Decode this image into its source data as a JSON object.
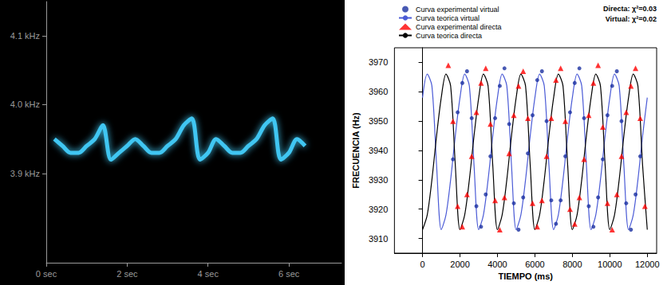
{
  "chart_data": [
    {
      "type": "line",
      "x": [
        0.2,
        0.4,
        0.6,
        0.8,
        1.0,
        1.2,
        1.4,
        1.6,
        1.8,
        2.0,
        2.2,
        2.4,
        2.6,
        2.8,
        3.0,
        3.2,
        3.4,
        3.6,
        3.8,
        4.0,
        4.2,
        4.4,
        4.6,
        4.8,
        5.0,
        5.2,
        5.4,
        5.6,
        5.8,
        6.0,
        6.2,
        6.4
      ],
      "values": [
        3.95,
        3.94,
        3.93,
        3.93,
        3.94,
        3.95,
        3.97,
        3.92,
        3.93,
        3.94,
        3.95,
        3.94,
        3.93,
        3.93,
        3.94,
        3.95,
        3.97,
        3.98,
        3.92,
        3.93,
        3.95,
        3.94,
        3.93,
        3.93,
        3.94,
        3.95,
        3.97,
        3.98,
        3.92,
        3.93,
        3.95,
        3.94
      ],
      "color": "#3fc6f2",
      "marker": "none",
      "line_style": "solid",
      "xlim": [
        0,
        7.3
      ],
      "xticks": [
        {
          "value": 0,
          "label": "0 sec"
        },
        {
          "value": 2,
          "label": "2 sec"
        },
        {
          "value": 4,
          "label": "4 sec"
        },
        {
          "value": 6,
          "label": "6 sec"
        }
      ],
      "ylim": [
        3.77,
        4.15
      ],
      "yticks": [
        {
          "value": 3.9,
          "label": "3.9 kHz"
        },
        {
          "value": 4.0,
          "label": "4.0 kHz"
        },
        {
          "value": 4.1,
          "label": "4.1 kHz"
        }
      ],
      "grid": false
    },
    {
      "type": "line",
      "x_label": "TIEMPO (ms)",
      "y_label": "FRECUENCIA (Hz)",
      "annotations": [
        "Directa: χ²=0.03",
        "Virtual: χ²=0.02"
      ],
      "series": [
        {
          "name": "Curva experimental virtual",
          "type": "scatter",
          "marker": "circle",
          "color": "#1a2fa0",
          "x": [
            1625,
            1875,
            2125,
            2375,
            2625,
            2875,
            3125,
            3375,
            3625,
            3875,
            4125,
            4375,
            4625,
            4875,
            5125,
            5375,
            5625,
            5875,
            6125,
            6375,
            6625,
            6875,
            7125,
            7375,
            7625,
            7875,
            8125,
            8375,
            8625,
            8875,
            9125,
            9375,
            9625,
            9875,
            10125,
            10375,
            10625,
            10875,
            11125,
            11375,
            11625
          ],
          "values": [
            3937,
            3953,
            3963,
            3967,
            3951,
            3921,
            3914,
            3925,
            3938,
            3951,
            3962,
            3968,
            3949,
            3922,
            3913,
            3924,
            3939,
            3952,
            3964,
            3967,
            3950,
            3923,
            3915,
            3923,
            3938,
            3953,
            3963,
            3968,
            3951,
            3921,
            3914,
            3924,
            3937,
            3952,
            3962,
            3967,
            3950,
            3922,
            3913,
            3925,
            3938
          ]
        },
        {
          "name": "Curva teorica virtual",
          "type": "line",
          "marker": "none",
          "line_style": "solid",
          "color": "#4b5bd6",
          "x": [
            0,
            250,
            500,
            750,
            1000,
            1250,
            1500,
            1750,
            2000,
            2250,
            2500,
            2750,
            3000,
            3250,
            3500,
            3750,
            4000,
            4250,
            4500,
            4750,
            5000,
            5250,
            5500,
            5750,
            6000,
            6250,
            6500,
            6750,
            7000,
            7250,
            7500,
            7750,
            8000,
            8250,
            8500,
            8750,
            9000,
            9250,
            9500,
            9750,
            10000,
            10250,
            10500,
            10750,
            11000,
            11250,
            11500,
            11750,
            12000
          ],
          "values": [
            3958,
            3966,
            3962,
            3935,
            3913,
            3918,
            3930,
            3945,
            3958,
            3966,
            3962,
            3935,
            3913,
            3918,
            3930,
            3945,
            3958,
            3966,
            3962,
            3935,
            3913,
            3918,
            3930,
            3945,
            3958,
            3966,
            3962,
            3935,
            3913,
            3918,
            3930,
            3945,
            3958,
            3966,
            3962,
            3935,
            3913,
            3918,
            3930,
            3945,
            3958,
            3966,
            3962,
            3935,
            3913,
            3918,
            3930,
            3945,
            3958
          ]
        },
        {
          "name": "Curva experimental directa",
          "type": "scatter",
          "marker": "triangle",
          "color": "#ff0000",
          "x": [
            1375,
            1625,
            1875,
            2125,
            2375,
            2625,
            2875,
            3125,
            3375,
            3625,
            3875,
            4125,
            4375,
            4625,
            4875,
            5125,
            5375,
            5625,
            5875,
            6125,
            6375,
            6625,
            6875,
            7125,
            7375,
            7625,
            7875,
            8125,
            8375,
            8625,
            8875,
            9125,
            9375,
            9625,
            9875,
            10125,
            10375,
            10625,
            10875,
            11125,
            11375,
            11625,
            11875
          ],
          "values": [
            3969,
            3950,
            3921,
            3914,
            3925,
            3938,
            3953,
            3963,
            3968,
            3949,
            3923,
            3913,
            3924,
            3939,
            3952,
            3962,
            3967,
            3951,
            3922,
            3914,
            3923,
            3938,
            3951,
            3964,
            3968,
            3950,
            3920,
            3915,
            3924,
            3937,
            3952,
            3963,
            3969,
            3948,
            3922,
            3913,
            3925,
            3938,
            3953,
            3962,
            3968,
            3951,
            3921
          ]
        },
        {
          "name": "Curva teorica directa",
          "type": "line",
          "marker": "none",
          "line_style": "solid",
          "color": "#000000",
          "x": [
            0,
            250,
            500,
            750,
            1000,
            1250,
            1500,
            1750,
            2000,
            2250,
            2500,
            2750,
            3000,
            3250,
            3500,
            3750,
            4000,
            4250,
            4500,
            4750,
            5000,
            5250,
            5500,
            5750,
            6000,
            6250,
            6500,
            6750,
            7000,
            7250,
            7500,
            7750,
            8000,
            8250,
            8500,
            8750,
            9000,
            9250,
            9500,
            9750,
            10000,
            10250,
            10500,
            10750,
            11000,
            11250,
            11500,
            11750,
            12000
          ],
          "values": [
            3913,
            3918,
            3930,
            3945,
            3958,
            3966,
            3962,
            3935,
            3913,
            3918,
            3930,
            3945,
            3958,
            3966,
            3962,
            3935,
            3913,
            3918,
            3930,
            3945,
            3958,
            3966,
            3962,
            3935,
            3913,
            3918,
            3930,
            3945,
            3958,
            3966,
            3962,
            3935,
            3913,
            3918,
            3930,
            3945,
            3958,
            3966,
            3962,
            3935,
            3913,
            3918,
            3930,
            3945,
            3958,
            3966,
            3962,
            3935,
            3913
          ]
        }
      ],
      "xlim": [
        -1500,
        12500
      ],
      "xticks": [
        0,
        2000,
        4000,
        6000,
        8000,
        10000,
        12000
      ],
      "ylim": [
        3905,
        3975
      ],
      "yticks": [
        3910,
        3920,
        3930,
        3940,
        3950,
        3960,
        3970
      ],
      "grid": false,
      "legend": "top left"
    }
  ]
}
